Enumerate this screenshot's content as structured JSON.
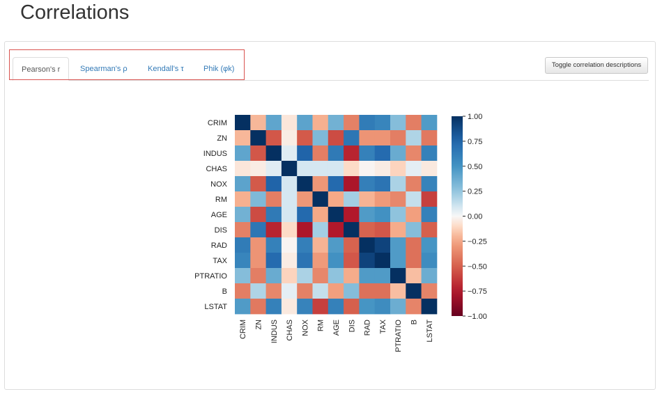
{
  "page": {
    "title": "Correlations"
  },
  "tabs": [
    {
      "label": "Pearson's r",
      "active": true
    },
    {
      "label": "Spearman's ρ",
      "active": false
    },
    {
      "label": "Kendall's τ",
      "active": false
    },
    {
      "label": "Phik (φk)",
      "active": false
    }
  ],
  "toggle_button": {
    "label": "Toggle correlation descriptions"
  },
  "colors": {
    "highlight_border": "#d9534f",
    "link": "#337ab7",
    "cmap": "RdBu"
  },
  "chart_data": {
    "type": "heatmap",
    "title": "",
    "variables": [
      "CRIM",
      "ZN",
      "INDUS",
      "CHAS",
      "NOX",
      "RM",
      "AGE",
      "DIS",
      "RAD",
      "TAX",
      "PTRATIO",
      "B",
      "LSTAT"
    ],
    "matrix": [
      [
        1.0,
        -0.2,
        0.41,
        -0.06,
        0.42,
        -0.22,
        0.35,
        -0.38,
        0.63,
        0.58,
        0.29,
        -0.39,
        0.46
      ],
      [
        -0.2,
        1.0,
        -0.53,
        -0.04,
        -0.52,
        0.31,
        -0.57,
        0.66,
        -0.31,
        -0.31,
        -0.39,
        0.18,
        -0.41
      ],
      [
        0.41,
        -0.53,
        1.0,
        0.06,
        0.76,
        -0.39,
        0.64,
        -0.71,
        0.6,
        0.72,
        0.38,
        -0.36,
        0.6
      ],
      [
        -0.06,
        -0.04,
        0.06,
        1.0,
        0.09,
        0.09,
        0.09,
        -0.1,
        -0.01,
        -0.04,
        -0.12,
        0.05,
        -0.05
      ],
      [
        0.42,
        -0.52,
        0.76,
        0.09,
        1.0,
        -0.3,
        0.73,
        -0.77,
        0.61,
        0.67,
        0.19,
        -0.38,
        0.59
      ],
      [
        -0.22,
        0.31,
        -0.39,
        0.09,
        -0.3,
        1.0,
        -0.24,
        0.21,
        -0.21,
        -0.29,
        -0.36,
        0.13,
        -0.61
      ],
      [
        0.35,
        -0.57,
        0.64,
        0.09,
        0.73,
        -0.24,
        1.0,
        -0.75,
        0.46,
        0.51,
        0.26,
        -0.27,
        0.6
      ],
      [
        -0.38,
        0.66,
        -0.71,
        -0.1,
        -0.77,
        0.21,
        -0.75,
        1.0,
        -0.49,
        -0.53,
        -0.23,
        0.29,
        -0.5
      ],
      [
        0.63,
        -0.31,
        0.6,
        -0.01,
        0.61,
        -0.21,
        0.46,
        -0.49,
        1.0,
        0.91,
        0.46,
        -0.44,
        0.49
      ],
      [
        0.58,
        -0.31,
        0.72,
        -0.04,
        0.67,
        -0.29,
        0.51,
        -0.53,
        0.91,
        1.0,
        0.46,
        -0.44,
        0.54
      ],
      [
        0.29,
        -0.39,
        0.38,
        -0.12,
        0.19,
        -0.36,
        0.26,
        -0.23,
        0.46,
        0.46,
        1.0,
        -0.18,
        0.37
      ],
      [
        -0.39,
        0.18,
        -0.36,
        0.05,
        -0.38,
        0.13,
        -0.27,
        0.29,
        -0.44,
        -0.44,
        -0.18,
        1.0,
        -0.37
      ],
      [
        0.46,
        -0.41,
        0.6,
        -0.05,
        0.59,
        -0.61,
        0.6,
        -0.5,
        0.49,
        0.54,
        0.37,
        -0.37,
        1.0
      ]
    ],
    "colorbar": {
      "range": [
        -1,
        1
      ],
      "ticks": [
        1.0,
        0.75,
        0.5,
        0.25,
        0.0,
        -0.25,
        -0.5,
        -0.75,
        -1.0
      ],
      "tick_labels": [
        "1.00",
        "0.75",
        "0.50",
        "0.25",
        "0.00",
        "−0.25",
        "−0.50",
        "−0.75",
        "−1.00"
      ]
    }
  }
}
